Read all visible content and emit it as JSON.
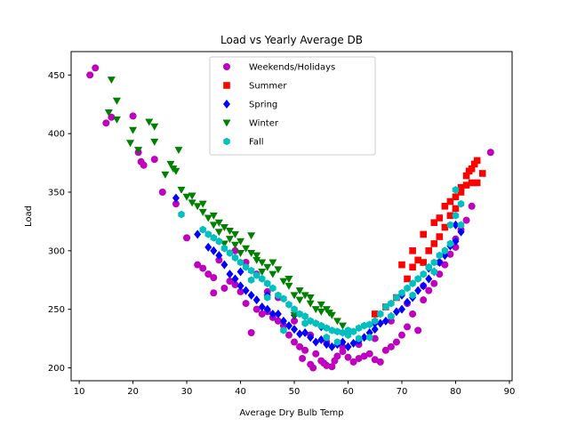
{
  "chart_data": {
    "type": "scatter",
    "title": "Load vs Yearly Average DB",
    "xlabel": "Average Dry Bulb Temp",
    "ylabel": "Load",
    "xlim": [
      8.5,
      90.5
    ],
    "ylim": [
      189,
      470
    ],
    "xticks": [
      10,
      20,
      30,
      40,
      50,
      60,
      70,
      80,
      90
    ],
    "yticks": [
      200,
      250,
      300,
      350,
      400,
      450
    ],
    "grid": false,
    "legend_position": "upper center",
    "series": [
      {
        "name": "Weekends/Holidays",
        "color": "#bf00bf",
        "marker": "circle",
        "points": [
          [
            12,
            450
          ],
          [
            13,
            456
          ],
          [
            15,
            409
          ],
          [
            16,
            414
          ],
          [
            20,
            415
          ],
          [
            21,
            384
          ],
          [
            21.5,
            376
          ],
          [
            22,
            373
          ],
          [
            24,
            378
          ],
          [
            25.5,
            350
          ],
          [
            28,
            340
          ],
          [
            30,
            311
          ],
          [
            32,
            288
          ],
          [
            33,
            285
          ],
          [
            34,
            280
          ],
          [
            35,
            277
          ],
          [
            35,
            264
          ],
          [
            36,
            292
          ],
          [
            37,
            268
          ],
          [
            38,
            274
          ],
          [
            39,
            271
          ],
          [
            40,
            265
          ],
          [
            41,
            255
          ],
          [
            42,
            230
          ],
          [
            43,
            250
          ],
          [
            44,
            246
          ],
          [
            45,
            248
          ],
          [
            46,
            243
          ],
          [
            47,
            240
          ],
          [
            48,
            236
          ],
          [
            49,
            228
          ],
          [
            50,
            222
          ],
          [
            51,
            218
          ],
          [
            51.5,
            208
          ],
          [
            52,
            215
          ],
          [
            53,
            203
          ],
          [
            53.5,
            200
          ],
          [
            54,
            212
          ],
          [
            55,
            206
          ],
          [
            55.5,
            204
          ],
          [
            56,
            202
          ],
          [
            57,
            201
          ],
          [
            57.5,
            206
          ],
          [
            58,
            210
          ],
          [
            59,
            214
          ],
          [
            60,
            209
          ],
          [
            61,
            205
          ],
          [
            62,
            208
          ],
          [
            63,
            210
          ],
          [
            64,
            212
          ],
          [
            65,
            207
          ],
          [
            66,
            205
          ],
          [
            67,
            215
          ],
          [
            68,
            218
          ],
          [
            69,
            222
          ],
          [
            70,
            228
          ],
          [
            71,
            235
          ],
          [
            72,
            246
          ],
          [
            73,
            232
          ],
          [
            74,
            258
          ],
          [
            75,
            266
          ],
          [
            76,
            272
          ],
          [
            77,
            280
          ],
          [
            78,
            288
          ],
          [
            79,
            297
          ],
          [
            80,
            303
          ],
          [
            81,
            318
          ],
          [
            82,
            326
          ],
          [
            83,
            338
          ],
          [
            86.5,
            384
          ],
          [
            39,
            300
          ],
          [
            41,
            290
          ],
          [
            43,
            280
          ],
          [
            45,
            265
          ],
          [
            47,
            260
          ],
          [
            50,
            240
          ],
          [
            53,
            228
          ],
          [
            56,
            222
          ],
          [
            59,
            218
          ],
          [
            62,
            220
          ],
          [
            65,
            225
          ],
          [
            68,
            240
          ],
          [
            71,
            255
          ],
          [
            74,
            270
          ],
          [
            77,
            290
          ],
          [
            80,
            310
          ]
        ]
      },
      {
        "name": "Summer",
        "color": "#ff0000",
        "marker": "square",
        "points": [
          [
            65,
            246
          ],
          [
            67,
            252
          ],
          [
            69,
            260
          ],
          [
            70,
            288
          ],
          [
            71,
            276
          ],
          [
            72,
            286
          ],
          [
            73,
            292
          ],
          [
            74,
            290
          ],
          [
            75,
            300
          ],
          [
            76,
            306
          ],
          [
            77,
            312
          ],
          [
            77,
            328
          ],
          [
            78,
            320
          ],
          [
            78,
            338
          ],
          [
            79,
            330
          ],
          [
            79,
            342
          ],
          [
            80,
            336
          ],
          [
            80,
            346
          ],
          [
            81,
            350
          ],
          [
            81,
            354
          ],
          [
            82,
            356
          ],
          [
            82,
            364
          ],
          [
            82.5,
            368
          ],
          [
            83,
            370
          ],
          [
            83,
            358
          ],
          [
            83.5,
            374
          ],
          [
            84,
            377
          ],
          [
            84,
            358
          ],
          [
            85,
            366
          ],
          [
            76,
            324
          ],
          [
            74,
            314
          ],
          [
            72,
            300
          ]
        ]
      },
      {
        "name": "Spring",
        "color": "#0000ff",
        "marker": "diamond",
        "points": [
          [
            28,
            345
          ],
          [
            32,
            314
          ],
          [
            34,
            303
          ],
          [
            36,
            296
          ],
          [
            37,
            288
          ],
          [
            38,
            280
          ],
          [
            39,
            276
          ],
          [
            40,
            270
          ],
          [
            41,
            266
          ],
          [
            42,
            262
          ],
          [
            43,
            258
          ],
          [
            44,
            252
          ],
          [
            45,
            250
          ],
          [
            46,
            246
          ],
          [
            47,
            246
          ],
          [
            48,
            240
          ],
          [
            49,
            236
          ],
          [
            50,
            233
          ],
          [
            51,
            229
          ],
          [
            52,
            230
          ],
          [
            53,
            226
          ],
          [
            54,
            222
          ],
          [
            55,
            224
          ],
          [
            56,
            220
          ],
          [
            57,
            218
          ],
          [
            58,
            220
          ],
          [
            59,
            222
          ],
          [
            60,
            218
          ],
          [
            61,
            221
          ],
          [
            62,
            223
          ],
          [
            63,
            226
          ],
          [
            64,
            230
          ],
          [
            65,
            233
          ],
          [
            66,
            238
          ],
          [
            67,
            240
          ],
          [
            68,
            244
          ],
          [
            69,
            248
          ],
          [
            70,
            250
          ],
          [
            71,
            256
          ],
          [
            72,
            260
          ],
          [
            73,
            266
          ],
          [
            74,
            270
          ],
          [
            75,
            276
          ],
          [
            76,
            282
          ],
          [
            77,
            290
          ],
          [
            78,
            296
          ],
          [
            79,
            304
          ],
          [
            80,
            308
          ],
          [
            81,
            316
          ],
          [
            35,
            300
          ],
          [
            40,
            282
          ],
          [
            45,
            262
          ],
          [
            50,
            245
          ],
          [
            55,
            235
          ],
          [
            60,
            230
          ],
          [
            65,
            238
          ],
          [
            70,
            262
          ],
          [
            75,
            285
          ],
          [
            80,
            322
          ]
        ]
      },
      {
        "name": "Winter",
        "color": "#008000",
        "marker": "triangle-down",
        "points": [
          [
            16,
            446
          ],
          [
            17,
            428
          ],
          [
            15.5,
            418
          ],
          [
            17,
            412
          ],
          [
            19.5,
            392
          ],
          [
            20,
            403
          ],
          [
            21,
            386
          ],
          [
            23,
            410
          ],
          [
            24,
            406
          ],
          [
            24,
            393
          ],
          [
            26,
            365
          ],
          [
            27,
            374
          ],
          [
            27.5,
            370
          ],
          [
            28,
            368
          ],
          [
            28.5,
            386
          ],
          [
            29,
            352
          ],
          [
            30,
            346
          ],
          [
            31,
            347
          ],
          [
            31,
            341
          ],
          [
            32,
            338
          ],
          [
            33,
            340
          ],
          [
            33,
            333
          ],
          [
            34,
            328
          ],
          [
            35,
            330
          ],
          [
            35,
            322
          ],
          [
            36,
            324
          ],
          [
            36,
            316
          ],
          [
            37,
            320
          ],
          [
            38,
            317
          ],
          [
            38,
            310
          ],
          [
            39,
            314
          ],
          [
            39,
            305
          ],
          [
            40,
            308
          ],
          [
            40,
            298
          ],
          [
            41,
            302
          ],
          [
            42,
            298
          ],
          [
            42,
            313
          ],
          [
            43,
            292
          ],
          [
            44,
            290
          ],
          [
            45,
            286
          ],
          [
            46,
            290
          ],
          [
            46,
            280
          ],
          [
            47,
            284
          ],
          [
            48,
            274
          ],
          [
            49,
            270
          ],
          [
            50,
            262
          ],
          [
            51,
            258
          ],
          [
            52,
            262
          ],
          [
            53,
            255
          ],
          [
            54,
            250
          ],
          [
            55,
            248
          ],
          [
            56,
            250
          ],
          [
            57,
            245
          ],
          [
            58,
            240
          ],
          [
            59,
            236
          ],
          [
            49,
            276
          ],
          [
            51,
            266
          ],
          [
            53,
            260
          ],
          [
            55,
            254
          ],
          [
            56.5,
            247
          ],
          [
            50,
            245
          ],
          [
            37,
            306
          ],
          [
            43,
            296
          ],
          [
            44,
            282
          ]
        ]
      },
      {
        "name": "Fall",
        "color": "#00bfbf",
        "marker": "hexagon",
        "points": [
          [
            29,
            331
          ],
          [
            33,
            318
          ],
          [
            34,
            314
          ],
          [
            35,
            311
          ],
          [
            36,
            308
          ],
          [
            37,
            302
          ],
          [
            38,
            298
          ],
          [
            39,
            294
          ],
          [
            40,
            290
          ],
          [
            41,
            286
          ],
          [
            42,
            283
          ],
          [
            43,
            279
          ],
          [
            44,
            276
          ],
          [
            45,
            272
          ],
          [
            46,
            268
          ],
          [
            47,
            262
          ],
          [
            48,
            259
          ],
          [
            49,
            254
          ],
          [
            50,
            250
          ],
          [
            51,
            246
          ],
          [
            52,
            244
          ],
          [
            53,
            240
          ],
          [
            54,
            238
          ],
          [
            55,
            236
          ],
          [
            56,
            234
          ],
          [
            57,
            232
          ],
          [
            58,
            231
          ],
          [
            59,
            230
          ],
          [
            60,
            232
          ],
          [
            61,
            231
          ],
          [
            62,
            234
          ],
          [
            63,
            236
          ],
          [
            64,
            237
          ],
          [
            65,
            240
          ],
          [
            66,
            246
          ],
          [
            67,
            252
          ],
          [
            68,
            255
          ],
          [
            69,
            260
          ],
          [
            70,
            264
          ],
          [
            71,
            268
          ],
          [
            72,
            272
          ],
          [
            73,
            276
          ],
          [
            74,
            280
          ],
          [
            75,
            286
          ],
          [
            76,
            290
          ],
          [
            77,
            296
          ],
          [
            78,
            300
          ],
          [
            79,
            306
          ],
          [
            79,
            322
          ],
          [
            80,
            330
          ],
          [
            80,
            352
          ],
          [
            81,
            340
          ],
          [
            81,
            322
          ],
          [
            48,
            232
          ],
          [
            52,
            238
          ],
          [
            56,
            226
          ],
          [
            60,
            228
          ],
          [
            64,
            226
          ],
          [
            68,
            244
          ],
          [
            72,
            262
          ],
          [
            76,
            282
          ],
          [
            58,
            222
          ],
          [
            62,
            225
          ],
          [
            42,
            275
          ],
          [
            45,
            260
          ]
        ]
      }
    ]
  }
}
